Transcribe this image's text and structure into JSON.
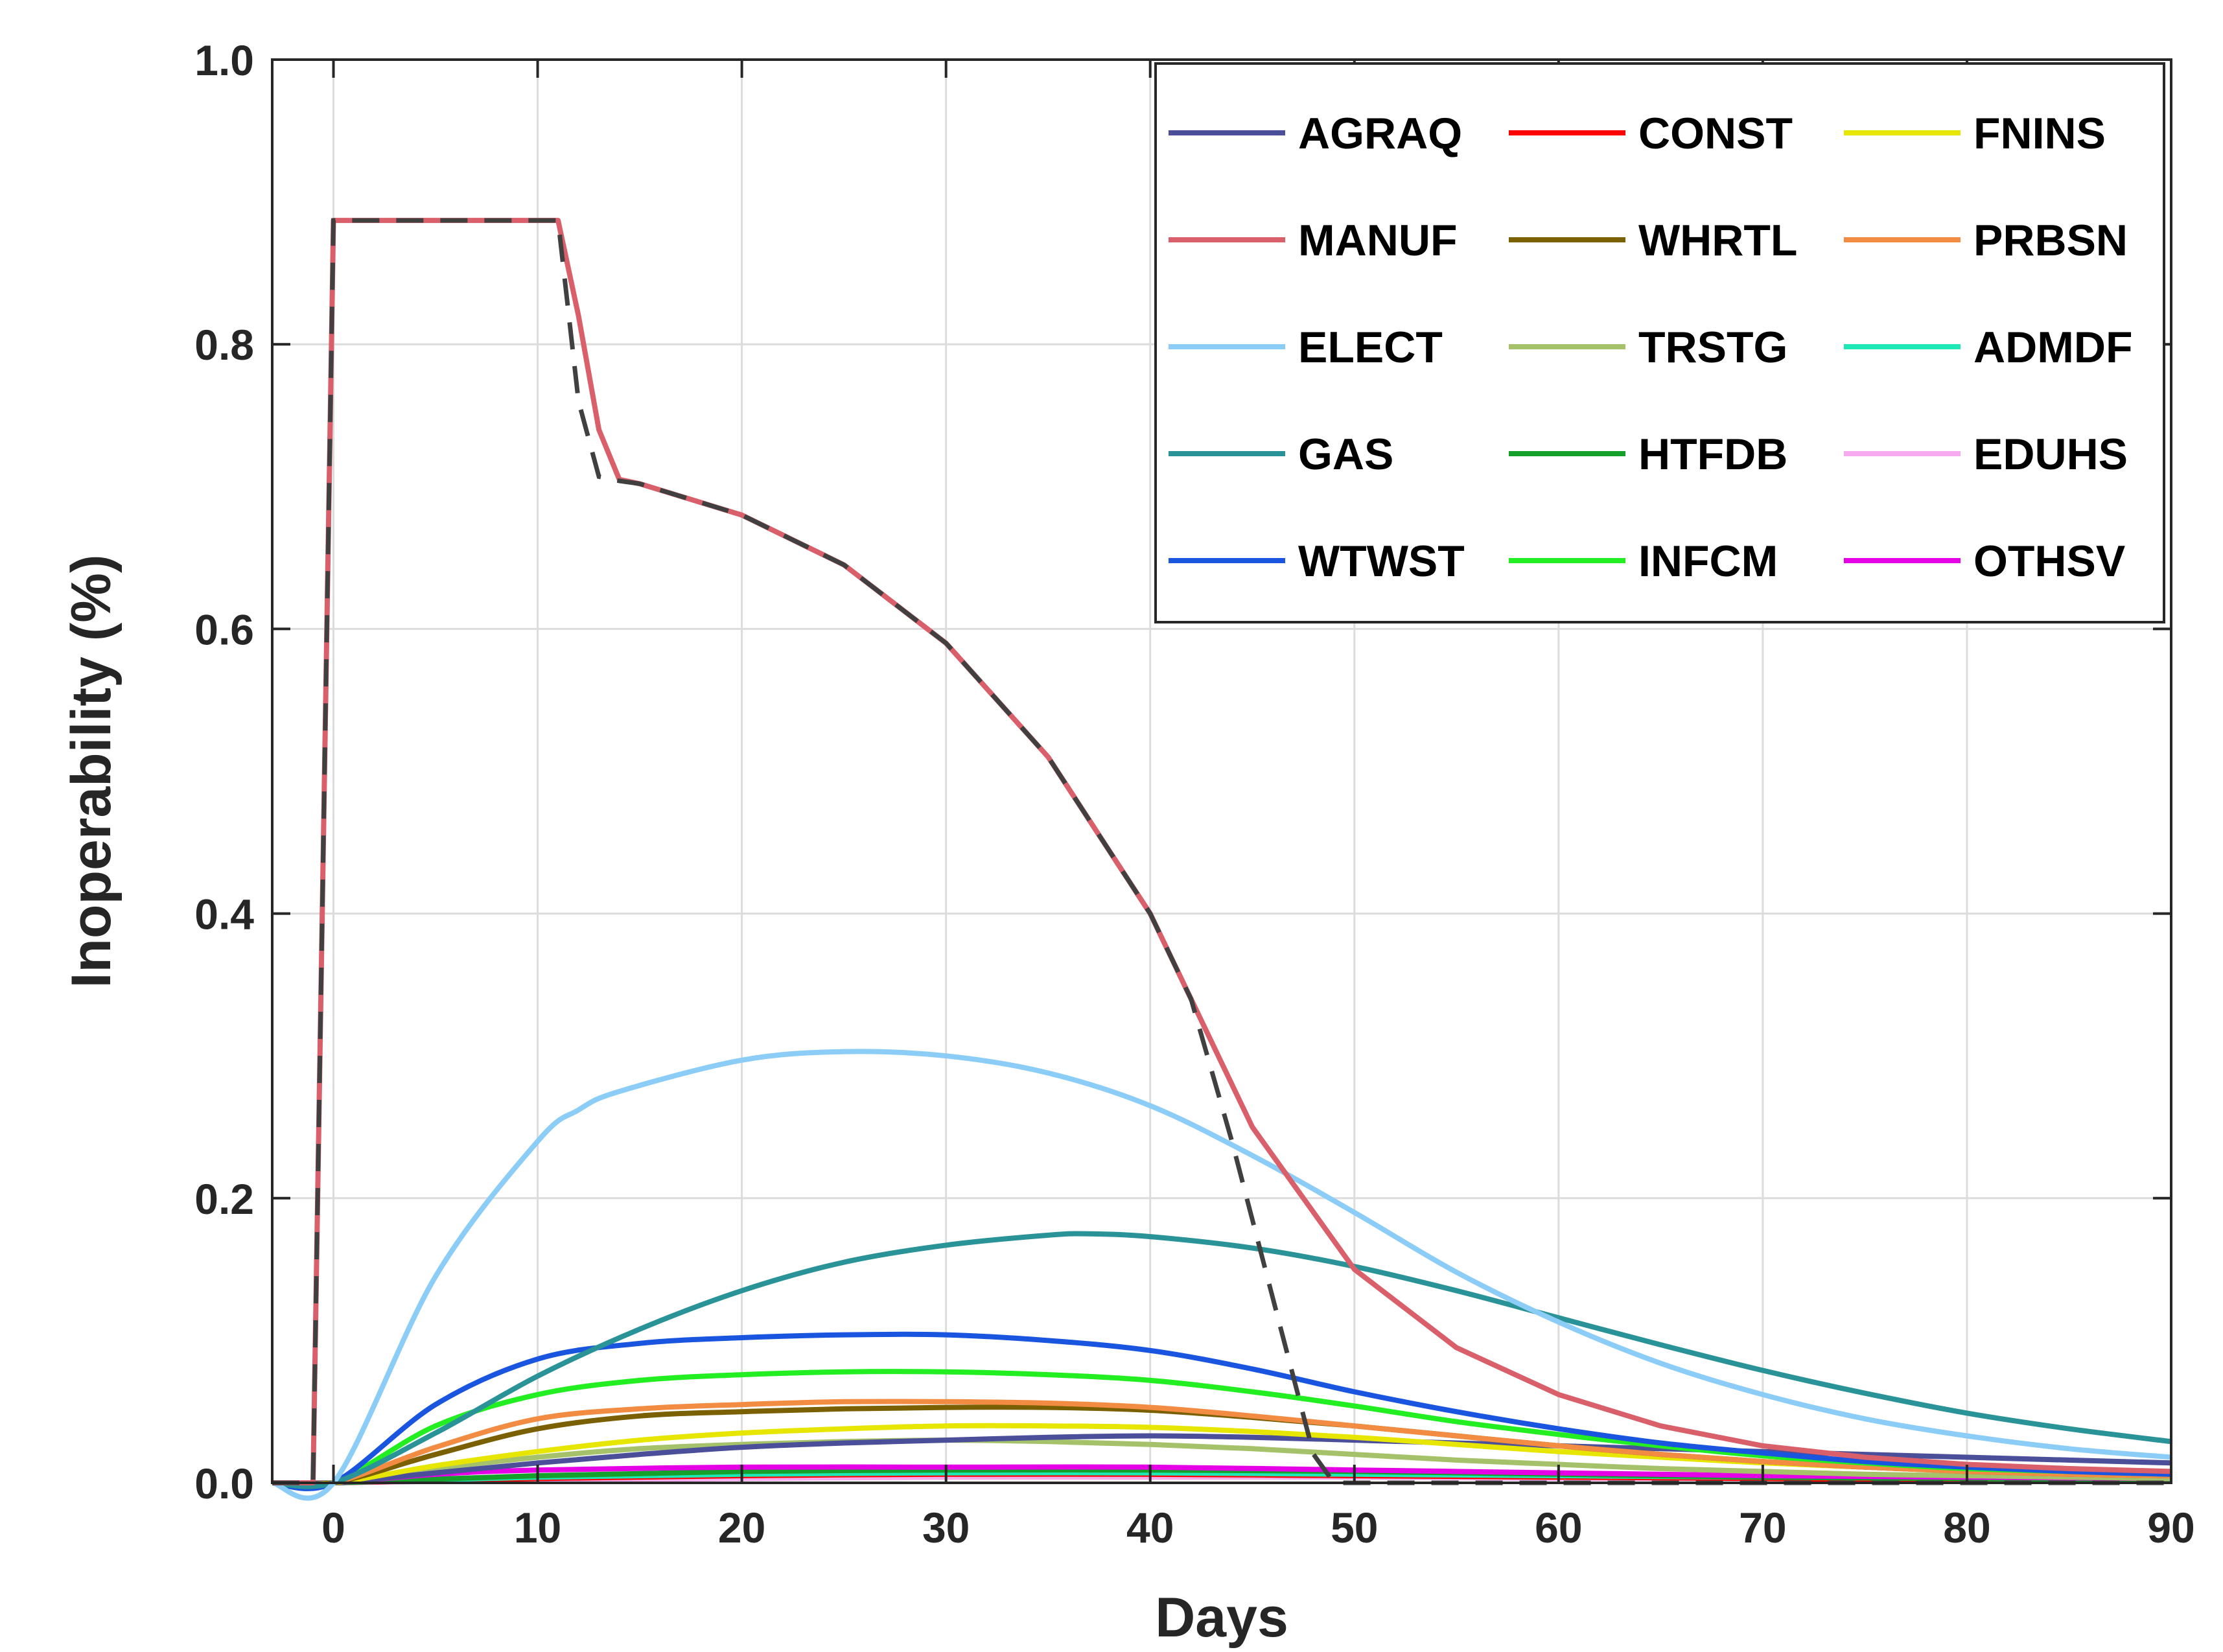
{
  "chart_data": {
    "type": "line",
    "title": "",
    "xlabel": "Days",
    "ylabel": "Inoperability (%)",
    "xlim": [
      -3,
      90
    ],
    "ylim": [
      0,
      1.0
    ],
    "xticks": [
      0,
      10,
      20,
      30,
      40,
      50,
      60,
      70,
      80,
      90
    ],
    "yticks": [
      0.0,
      0.2,
      0.4,
      0.6,
      0.8,
      1.0
    ],
    "ytick_labels": [
      "0.0",
      "0.2",
      "0.4",
      "0.6",
      "0.8",
      "1.0"
    ],
    "grid": true,
    "legend_position": "top-right",
    "legend_columns": 3,
    "series": [
      {
        "name": "AGRAQ",
        "color": "#4b4f9a",
        "x": [
          -3,
          0,
          5,
          10,
          15,
          20,
          25,
          30,
          35,
          40,
          45,
          50,
          55,
          60,
          65,
          70,
          75,
          80,
          85,
          90
        ],
        "y": [
          0,
          0,
          0.007,
          0.014,
          0.02,
          0.025,
          0.028,
          0.03,
          0.032,
          0.033,
          0.032,
          0.03,
          0.028,
          0.026,
          0.024,
          0.022,
          0.02,
          0.018,
          0.016,
          0.014
        ]
      },
      {
        "name": "CONST",
        "color": "#ff0000",
        "x": [
          -3,
          0,
          10,
          20,
          30,
          40,
          50,
          60,
          70,
          80,
          90
        ],
        "y": [
          0,
          0,
          0.003,
          0.005,
          0.006,
          0.006,
          0.005,
          0.004,
          0.003,
          0.002,
          0.002
        ]
      },
      {
        "name": "FNINS",
        "color": "#e6e600",
        "x": [
          -3,
          0,
          5,
          10,
          15,
          20,
          25,
          30,
          35,
          40,
          45,
          50,
          55,
          60,
          65,
          70,
          75,
          80,
          85,
          90
        ],
        "y": [
          0,
          0,
          0.012,
          0.022,
          0.03,
          0.035,
          0.038,
          0.04,
          0.04,
          0.039,
          0.036,
          0.032,
          0.027,
          0.022,
          0.018,
          0.014,
          0.011,
          0.009,
          0.007,
          0.006
        ]
      },
      {
        "name": "MANUF",
        "color": "#d95f6a",
        "x": [
          -3,
          -1,
          0,
          5,
          11,
          12,
          13,
          14,
          15,
          20,
          25,
          30,
          35,
          40,
          42,
          45,
          50,
          55,
          60,
          65,
          70,
          75,
          80,
          85,
          90
        ],
        "y": [
          0,
          0,
          0.887,
          0.887,
          0.887,
          0.82,
          0.74,
          0.705,
          0.702,
          0.68,
          0.645,
          0.59,
          0.51,
          0.4,
          0.34,
          0.25,
          0.15,
          0.095,
          0.062,
          0.04,
          0.026,
          0.018,
          0.013,
          0.01,
          0.008
        ]
      },
      {
        "name": "WHRTL",
        "color": "#7a6000",
        "x": [
          -3,
          0,
          5,
          10,
          15,
          20,
          25,
          30,
          35,
          40,
          45,
          50,
          55,
          60,
          65,
          70,
          75,
          80,
          85,
          90
        ],
        "y": [
          0,
          0,
          0.02,
          0.038,
          0.047,
          0.05,
          0.052,
          0.053,
          0.053,
          0.051,
          0.046,
          0.04,
          0.033,
          0.026,
          0.02,
          0.015,
          0.011,
          0.008,
          0.006,
          0.005
        ]
      },
      {
        "name": "PRBSN",
        "color": "#f28c42",
        "x": [
          -3,
          0,
          5,
          10,
          15,
          20,
          25,
          30,
          35,
          40,
          45,
          50,
          55,
          60,
          65,
          70,
          75,
          80,
          85,
          90
        ],
        "y": [
          0,
          0,
          0.025,
          0.045,
          0.052,
          0.055,
          0.057,
          0.057,
          0.056,
          0.053,
          0.047,
          0.04,
          0.033,
          0.026,
          0.02,
          0.015,
          0.011,
          0.008,
          0.006,
          0.005
        ]
      },
      {
        "name": "ELECT",
        "color": "#8ccdf7",
        "x": [
          -3,
          0,
          5,
          10,
          12,
          14,
          20,
          25,
          30,
          35,
          40,
          45,
          50,
          55,
          60,
          65,
          70,
          75,
          80,
          85,
          90
        ],
        "y": [
          0,
          0,
          0.145,
          0.24,
          0.262,
          0.275,
          0.297,
          0.303,
          0.3,
          0.288,
          0.265,
          0.23,
          0.19,
          0.148,
          0.113,
          0.084,
          0.062,
          0.045,
          0.033,
          0.024,
          0.018
        ]
      },
      {
        "name": "TRSTG",
        "color": "#a5c26a",
        "x": [
          -3,
          0,
          5,
          10,
          15,
          20,
          25,
          30,
          35,
          40,
          45,
          50,
          55,
          60,
          65,
          70,
          75,
          80,
          85,
          90
        ],
        "y": [
          0,
          0,
          0.01,
          0.018,
          0.024,
          0.027,
          0.029,
          0.03,
          0.029,
          0.027,
          0.024,
          0.02,
          0.016,
          0.013,
          0.01,
          0.008,
          0.006,
          0.005,
          0.004,
          0.003
        ]
      },
      {
        "name": "ADMDF",
        "color": "#1de9b6",
        "x": [
          -3,
          0,
          10,
          20,
          30,
          40,
          50,
          60,
          70,
          80,
          90
        ],
        "y": [
          0,
          0,
          0.004,
          0.006,
          0.007,
          0.007,
          0.006,
          0.005,
          0.004,
          0.003,
          0.002
        ]
      },
      {
        "name": "GAS",
        "color": "#2a9398",
        "x": [
          -3,
          0,
          5,
          10,
          15,
          20,
          25,
          30,
          35,
          37,
          40,
          45,
          50,
          55,
          60,
          65,
          70,
          75,
          80,
          85,
          90
        ],
        "y": [
          0,
          0,
          0.035,
          0.075,
          0.108,
          0.135,
          0.155,
          0.167,
          0.174,
          0.175,
          0.173,
          0.165,
          0.152,
          0.135,
          0.116,
          0.097,
          0.079,
          0.063,
          0.049,
          0.038,
          0.029
        ]
      },
      {
        "name": "HTFDB",
        "color": "#14a02a",
        "x": [
          -3,
          0,
          10,
          20,
          30,
          40,
          50,
          60,
          70,
          80,
          90
        ],
        "y": [
          0,
          0,
          0.005,
          0.008,
          0.009,
          0.009,
          0.008,
          0.006,
          0.004,
          0.003,
          0.002
        ]
      },
      {
        "name": "EDUHS",
        "color": "#f7aaf0",
        "x": [
          -3,
          0,
          10,
          20,
          30,
          40,
          50,
          60,
          70,
          80,
          90
        ],
        "y": [
          0,
          0,
          0.002,
          0.003,
          0.004,
          0.004,
          0.004,
          0.003,
          0.003,
          0.002,
          0.002
        ]
      },
      {
        "name": "WTWST",
        "color": "#1a55e0",
        "x": [
          -3,
          0,
          5,
          10,
          15,
          20,
          25,
          30,
          35,
          40,
          45,
          50,
          55,
          60,
          65,
          70,
          75,
          80,
          85,
          90
        ],
        "y": [
          0,
          0,
          0.055,
          0.087,
          0.098,
          0.102,
          0.104,
          0.104,
          0.1,
          0.093,
          0.08,
          0.064,
          0.05,
          0.038,
          0.028,
          0.021,
          0.015,
          0.011,
          0.008,
          0.006
        ]
      },
      {
        "name": "INFCM",
        "color": "#22ee22",
        "x": [
          -3,
          0,
          5,
          10,
          15,
          20,
          25,
          30,
          35,
          40,
          45,
          50,
          55,
          60,
          65,
          70,
          75,
          80,
          85,
          90
        ],
        "y": [
          0,
          0,
          0.04,
          0.062,
          0.072,
          0.076,
          0.078,
          0.078,
          0.076,
          0.072,
          0.064,
          0.054,
          0.043,
          0.034,
          0.026,
          0.019,
          0.014,
          0.01,
          0.008,
          0.006
        ]
      },
      {
        "name": "OTHSV",
        "color": "#e600e6",
        "x": [
          -3,
          0,
          5,
          10,
          20,
          30,
          40,
          50,
          60,
          70,
          80,
          90
        ],
        "y": [
          0,
          0,
          0.006,
          0.009,
          0.011,
          0.011,
          0.011,
          0.009,
          0.007,
          0.005,
          0.004,
          0.003
        ]
      }
    ],
    "dashed_reference": {
      "color": "#404040",
      "x": [
        -3,
        -1,
        0,
        5,
        11,
        12,
        13,
        14,
        15,
        20,
        25,
        30,
        35,
        40,
        42,
        44,
        46,
        48,
        49,
        90
      ],
      "y": [
        0,
        0,
        0.887,
        0.887,
        0.887,
        0.76,
        0.707,
        0.704,
        0.702,
        0.68,
        0.645,
        0.59,
        0.51,
        0.4,
        0.34,
        0.24,
        0.13,
        0.02,
        0,
        0
      ]
    }
  }
}
